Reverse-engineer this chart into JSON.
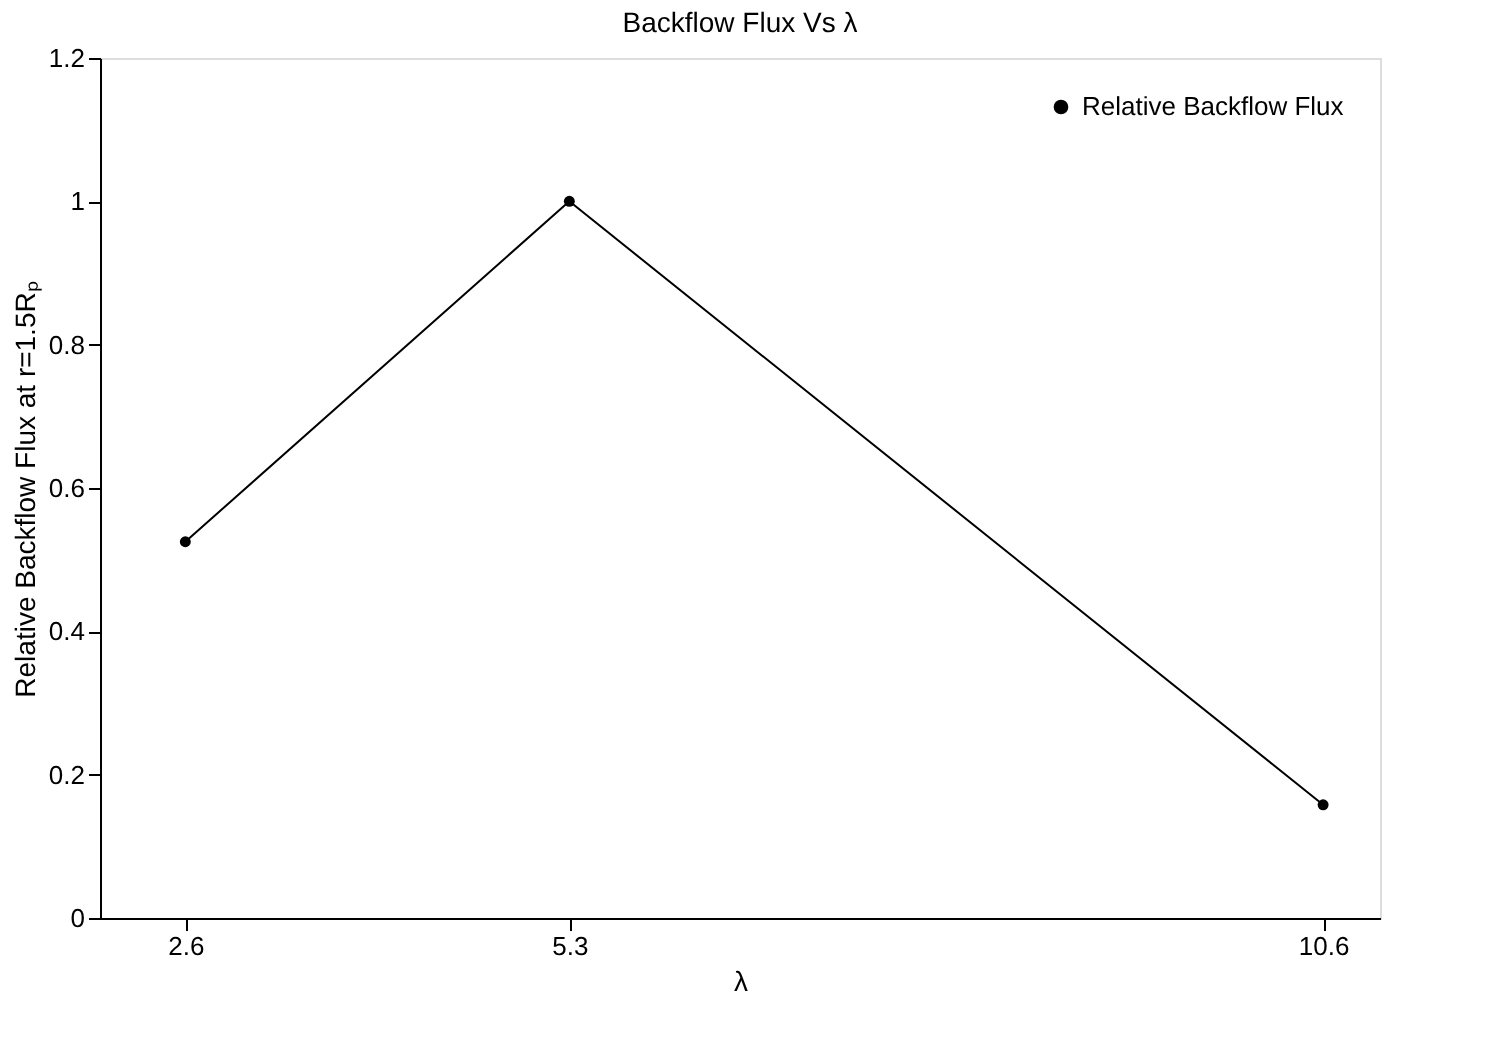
{
  "chart_data": {
    "type": "line",
    "title": "Backflow Flux Vs λ",
    "xlabel": "λ",
    "ylabel": "Relative Backflow Flux at r=1.5Rₚ",
    "x": [
      2.6,
      5.3,
      10.6
    ],
    "series": [
      {
        "name": "Relative Backflow Flux",
        "color": "#000000",
        "values": [
          0.525,
          1.0,
          0.158
        ]
      }
    ],
    "xlim": [
      2,
      11
    ],
    "xticks": [
      2.6,
      5.3,
      10.6
    ],
    "ylim": [
      0,
      1.2
    ],
    "yticks": [
      0,
      0.2,
      0.4,
      0.6,
      0.8,
      1,
      1.2
    ],
    "grid": false,
    "legend": "top right",
    "marker": "circle",
    "line_style": "solid"
  }
}
